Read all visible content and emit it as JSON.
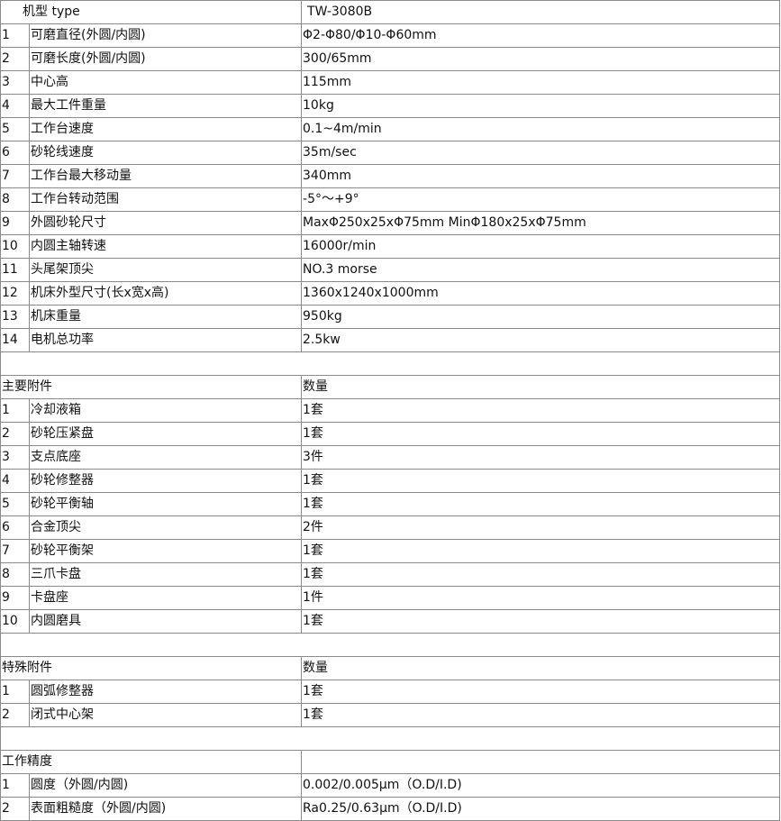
{
  "header": {
    "label": "机型 type",
    "value": "TW-3080B"
  },
  "specs": [
    {
      "no": "1",
      "name": "可磨直径(外圆/内圆)",
      "value": "Φ2-Φ80/Φ10-Φ60mm"
    },
    {
      "no": "2",
      "name": "可磨长度(外圆/内圆)",
      "value": "300/65mm"
    },
    {
      "no": "3",
      "name": "中心高",
      "value": "115mm"
    },
    {
      "no": "4",
      "name": "最大工件重量",
      "value": "10kg"
    },
    {
      "no": "5",
      "name": "工作台速度",
      "value": "0.1~4m/min"
    },
    {
      "no": "6",
      "name": "砂轮线速度",
      "value": "35m/sec"
    },
    {
      "no": "7",
      "name": "工作台最大移动量",
      "value": "340mm"
    },
    {
      "no": "8",
      "name": "工作台转动范围",
      "value": "-5°～+9°"
    },
    {
      "no": "9",
      "name": "外圆砂轮尺寸",
      "value": "MaxΦ250x25xΦ75mm  MinΦ180x25xΦ75mm"
    },
    {
      "no": "10",
      "name": "内圆主轴转速",
      "value": "16000r/min"
    },
    {
      "no": "11",
      "name": "头尾架顶尖",
      "value": "NO.3 morse"
    },
    {
      "no": "12",
      "name": "机床外型尺寸(长x宽x高)",
      "value": "1360x1240x1000mm"
    },
    {
      "no": "13",
      "name": "机床重量",
      "value": "950kg"
    },
    {
      "no": "14",
      "name": "电机总功率",
      "value": "2.5kw"
    }
  ],
  "main_accessories": {
    "title": "主要附件",
    "qty_label": "数量",
    "items": [
      {
        "no": "1",
        "name": "冷却液箱",
        "qty": "1套"
      },
      {
        "no": "2",
        "name": "砂轮压紧盘",
        "qty": "1套"
      },
      {
        "no": "3",
        "name": "支点底座",
        "qty": "3件"
      },
      {
        "no": "4",
        "name": "砂轮修整器",
        "qty": "1套"
      },
      {
        "no": "5",
        "name": "砂轮平衡轴",
        "qty": "1套"
      },
      {
        "no": "6",
        "name": "合金顶尖",
        "qty": "2件"
      },
      {
        "no": "7",
        "name": "砂轮平衡架",
        "qty": "1套"
      },
      {
        "no": "8",
        "name": "三爪卡盘",
        "qty": "1套"
      },
      {
        "no": "9",
        "name": "卡盘座",
        "qty": "1件"
      },
      {
        "no": "10",
        "name": "内圆磨具",
        "qty": "1套"
      }
    ]
  },
  "special_accessories": {
    "title": "特殊附件",
    "qty_label": "数量",
    "items": [
      {
        "no": "1",
        "name": "圆弧修整器",
        "qty": "1套"
      },
      {
        "no": "2",
        "name": "闭式中心架",
        "qty": "1套"
      }
    ]
  },
  "precision": {
    "title": "工作精度",
    "items": [
      {
        "no": "1",
        "name": "圆度（外圆/内圆)",
        "value": "0.002/0.005μm（O.D/I.D)"
      },
      {
        "no": "2",
        "name": "表面粗糙度（外圆/内圆)",
        "value": "Ra0.25/0.63μm（O.D/I.D)"
      }
    ]
  }
}
